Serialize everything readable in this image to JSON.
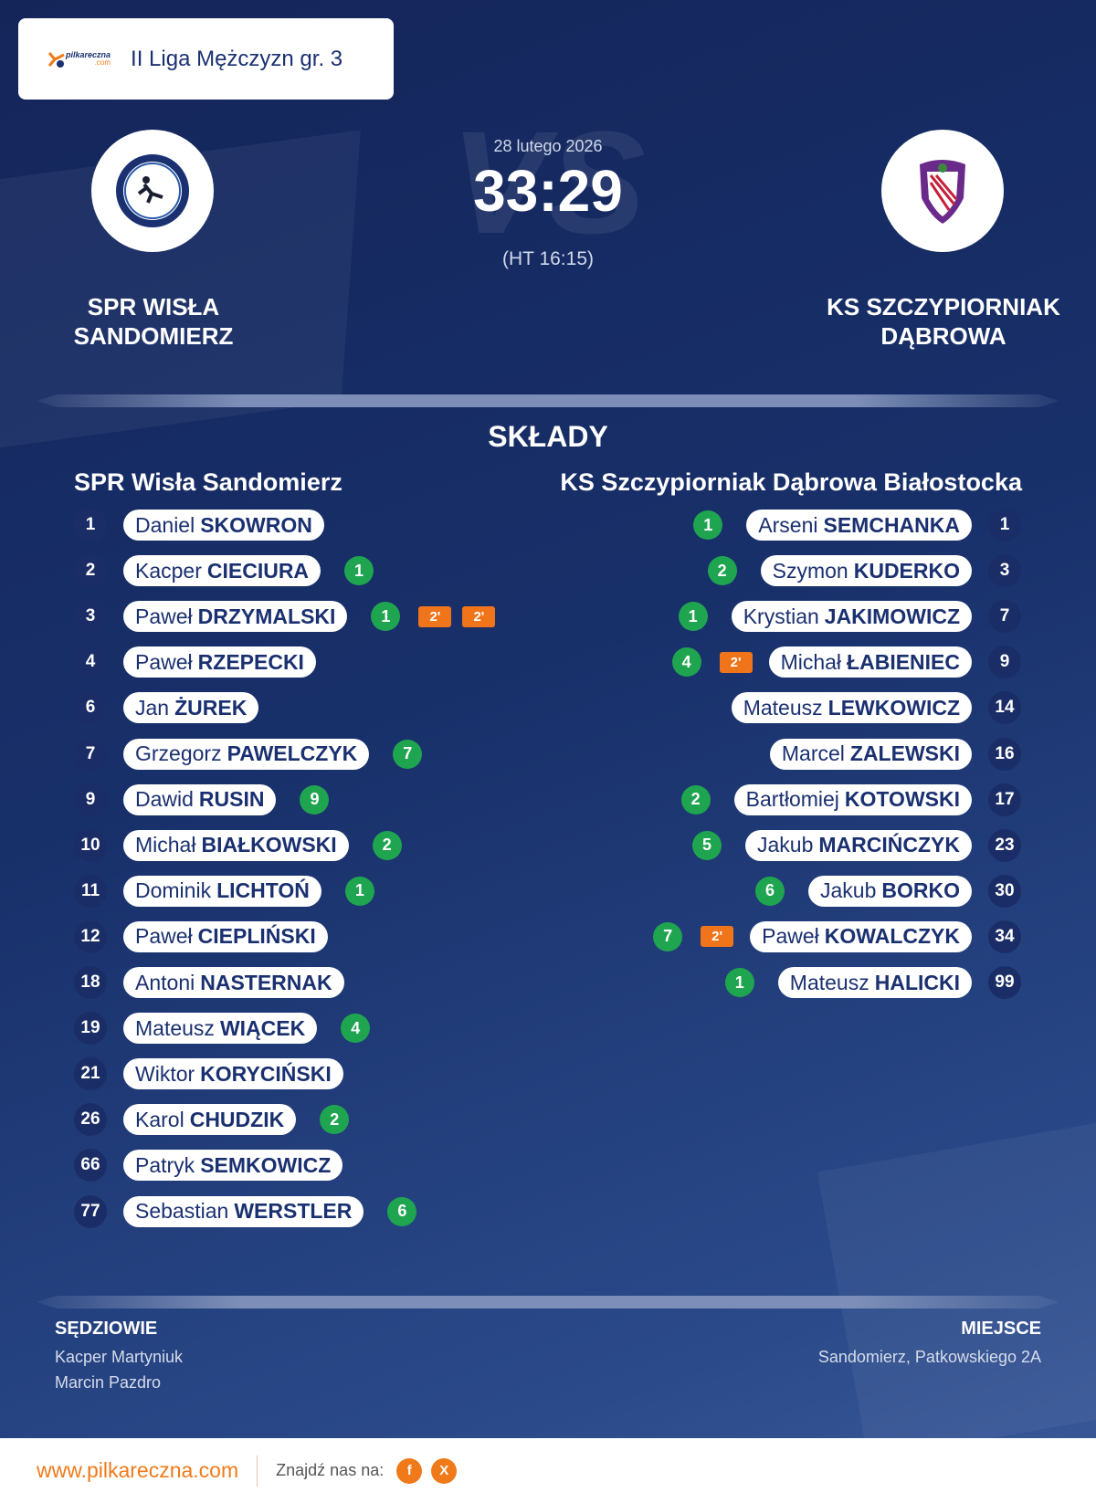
{
  "header": {
    "logo_text": "pilkareczna",
    "logo_sub": ".com",
    "league": "II Liga Mężczyzn gr. 3"
  },
  "match": {
    "vs": "VS",
    "date": "28 lutego 2026",
    "score": "33:29",
    "halftime": "(HT 16:15)",
    "home": "SPR WISŁA SANDOMIERZ",
    "away": "KS SZCZYPIORNIAK DĄBROWA"
  },
  "lineups": {
    "title": "SKŁADY",
    "home": {
      "team": "SPR Wisła Sandomierz",
      "players": [
        {
          "number": "1",
          "first": "Daniel",
          "last": "SKOWRON",
          "goals": null,
          "penalties": []
        },
        {
          "number": "2",
          "first": "Kacper",
          "last": "CIECIURA",
          "goals": "1",
          "penalties": []
        },
        {
          "number": "3",
          "first": "Paweł",
          "last": "DRZYMALSKI",
          "goals": "1",
          "penalties": [
            "2'",
            "2'"
          ]
        },
        {
          "number": "4",
          "first": "Paweł",
          "last": "RZEPECKI",
          "goals": null,
          "penalties": []
        },
        {
          "number": "6",
          "first": "Jan",
          "last": "ŻUREK",
          "goals": null,
          "penalties": []
        },
        {
          "number": "7",
          "first": "Grzegorz",
          "last": "PAWELCZYK",
          "goals": "7",
          "penalties": []
        },
        {
          "number": "9",
          "first": "Dawid",
          "last": "RUSIN",
          "goals": "9",
          "penalties": []
        },
        {
          "number": "10",
          "first": "Michał",
          "last": "BIAŁKOWSKI",
          "goals": "2",
          "penalties": []
        },
        {
          "number": "11",
          "first": "Dominik",
          "last": "LICHTOŃ",
          "goals": "1",
          "penalties": []
        },
        {
          "number": "12",
          "first": "Paweł",
          "last": "CIEPLIŃSKI",
          "goals": null,
          "penalties": []
        },
        {
          "number": "18",
          "first": "Antoni",
          "last": "NASTERNAK",
          "goals": null,
          "penalties": []
        },
        {
          "number": "19",
          "first": "Mateusz",
          "last": "WIĄCEK",
          "goals": "4",
          "penalties": []
        },
        {
          "number": "21",
          "first": "Wiktor",
          "last": "KORYCIŃSKI",
          "goals": null,
          "penalties": []
        },
        {
          "number": "26",
          "first": "Karol",
          "last": "CHUDZIK",
          "goals": "2",
          "penalties": []
        },
        {
          "number": "66",
          "first": "Patryk",
          "last": "SEMKOWICZ",
          "goals": null,
          "penalties": []
        },
        {
          "number": "77",
          "first": "Sebastian",
          "last": "WERSTLER",
          "goals": "6",
          "penalties": []
        }
      ]
    },
    "away": {
      "team": "KS Szczypiorniak Dąbrowa Białostocka",
      "players": [
        {
          "number": "1",
          "first": "Arseni",
          "last": "SEMCHANKA",
          "goals": "1",
          "penalties": []
        },
        {
          "number": "3",
          "first": "Szymon",
          "last": "KUDERKO",
          "goals": "2",
          "penalties": []
        },
        {
          "number": "7",
          "first": "Krystian",
          "last": "JAKIMOWICZ",
          "goals": "1",
          "penalties": []
        },
        {
          "number": "9",
          "first": "Michał",
          "last": "ŁABIENIEC",
          "goals": "4",
          "penalties": [
            "2'"
          ]
        },
        {
          "number": "14",
          "first": "Mateusz",
          "last": "LEWKOWICZ",
          "goals": null,
          "penalties": []
        },
        {
          "number": "16",
          "first": "Marcel",
          "last": "ZALEWSKI",
          "goals": null,
          "penalties": []
        },
        {
          "number": "17",
          "first": "Bartłomiej",
          "last": "KOTOWSKI",
          "goals": "2",
          "penalties": []
        },
        {
          "number": "23",
          "first": "Jakub",
          "last": "MARCIŃCZYK",
          "goals": "5",
          "penalties": []
        },
        {
          "number": "30",
          "first": "Jakub",
          "last": "BORKO",
          "goals": "6",
          "penalties": []
        },
        {
          "number": "34",
          "first": "Paweł",
          "last": "KOWALCZYK",
          "goals": "7",
          "penalties": [
            "2'"
          ]
        },
        {
          "number": "99",
          "first": "Mateusz",
          "last": "HALICKI",
          "goals": "1",
          "penalties": []
        }
      ]
    }
  },
  "officials": {
    "referees_title": "SĘDZIOWIE",
    "referees": [
      "Kacper Martyniuk",
      "Marcin Pazdro"
    ],
    "venue_title": "MIEJSCE",
    "venue": "Sandomierz, Patkowskiego 2A"
  },
  "footer": {
    "url": "www.pilkareczna.com",
    "follow": "Znajdź nas na:",
    "icons": [
      "f",
      "X"
    ]
  }
}
